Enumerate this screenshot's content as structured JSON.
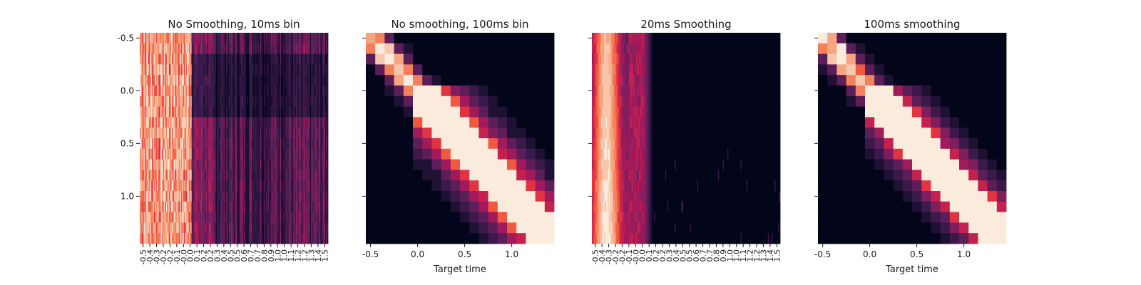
{
  "chart_data": [
    {
      "type": "heatmap",
      "title": "No Smoothing, 10ms bin",
      "xlabel": "",
      "ylabel": "",
      "y_tick_labels": [
        "-0.5",
        "0.0",
        "0.5",
        "1.0"
      ],
      "y_tick_values": [
        -0.5,
        0.0,
        0.5,
        1.0
      ],
      "x_tick_labels": [
        "-0.5",
        "-0.4",
        "-0.3",
        "-0.2",
        "-0.2",
        "-0.1",
        "-0.0",
        "0.0",
        "0.1",
        "0.2",
        "0.2",
        "0.3",
        "0.4",
        "0.5",
        "0.5",
        "0.6",
        "0.7",
        "0.7",
        "0.8",
        "0.9",
        "1.0",
        "1.0",
        "1.1",
        "1.2",
        "1.2",
        "1.3",
        "1.4",
        "1.5"
      ],
      "grid": "off",
      "colormap": "rocket",
      "pattern": "fine-columns, bright before t=0, dim after"
    },
    {
      "type": "heatmap",
      "title": "No smoothing, 100ms bin",
      "xlabel": "Target time",
      "ylabel": "",
      "y_tick_labels": [],
      "x_tick_labels": [
        "-0.5",
        "0.0",
        "0.5",
        "1.0"
      ],
      "x_tick_values": [
        -0.5,
        0.0,
        0.5,
        1.0
      ],
      "grid": "off",
      "colormap": "rocket",
      "pattern": "bright diagonal band"
    },
    {
      "type": "heatmap",
      "title": "20ms Smoothing",
      "xlabel": "",
      "ylabel": "",
      "y_tick_labels": [],
      "x_tick_labels": [
        "-0.5",
        "-0.4",
        "-0.3",
        "-0.2",
        "-0.2",
        "-0.1",
        "-0.0",
        "0.0",
        "0.1",
        "0.2",
        "0.2",
        "0.3",
        "0.4",
        "0.5",
        "0.5",
        "0.6",
        "0.7",
        "0.7",
        "0.8",
        "0.9",
        "1.0",
        "1.0",
        "1.1",
        "1.2",
        "1.2",
        "1.3",
        "1.4",
        "1.5"
      ],
      "grid": "off",
      "colormap": "rocket",
      "pattern": "bright vertical band before t=0"
    },
    {
      "type": "heatmap",
      "title": "100ms smoothing",
      "xlabel": "Target time",
      "ylabel": "",
      "y_tick_labels": [],
      "x_tick_labels": [
        "-0.5",
        "0.0",
        "0.5",
        "1.0"
      ],
      "x_tick_values": [
        -0.5,
        0.0,
        0.5,
        1.0
      ],
      "grid": "off",
      "colormap": "rocket",
      "pattern": "bright diagonal band"
    }
  ],
  "colors": {
    "dark": "#03051a",
    "palette": [
      "#03051a",
      "#1e1133",
      "#3b1a4b",
      "#5c1e58",
      "#7e1e5d",
      "#a11a5b",
      "#c4214f",
      "#e13342",
      "#f05840",
      "#f5805b",
      "#f6a583",
      "#f7c7ad",
      "#faebdd"
    ]
  }
}
